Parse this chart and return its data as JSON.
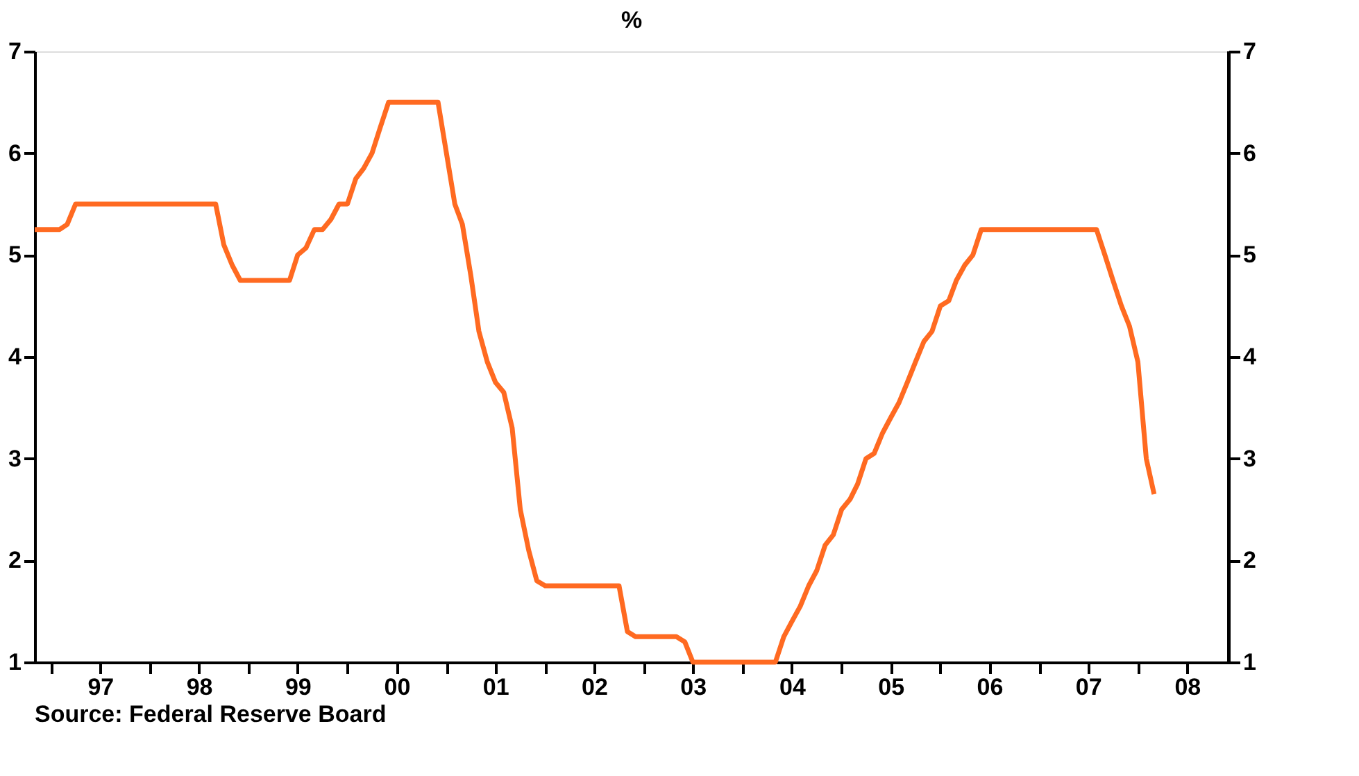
{
  "chart_data": {
    "type": "line",
    "title": "%",
    "x": [
      "1996-11",
      "1997-02",
      "1997-03",
      "1997-04",
      "1998-09",
      "1998-10",
      "1998-11",
      "1998-12",
      "1999-06",
      "1999-07",
      "1999-08",
      "1999-09",
      "1999-10",
      "1999-11",
      "1999-12",
      "2000-01",
      "2000-02",
      "2000-03",
      "2000-04",
      "2000-05",
      "2000-06",
      "2000-12",
      "2001-01",
      "2001-02",
      "2001-03",
      "2001-04",
      "2001-05",
      "2001-06",
      "2001-07",
      "2001-08",
      "2001-09",
      "2001-10",
      "2001-11",
      "2001-12",
      "2002-01",
      "2002-10",
      "2002-11",
      "2002-12",
      "2003-05",
      "2003-06",
      "2003-07",
      "2004-05",
      "2004-06",
      "2004-07",
      "2004-08",
      "2004-09",
      "2004-10",
      "2004-11",
      "2004-12",
      "2005-01",
      "2005-02",
      "2005-03",
      "2005-04",
      "2005-05",
      "2005-06",
      "2005-07",
      "2005-08",
      "2005-09",
      "2005-10",
      "2005-11",
      "2005-12",
      "2006-01",
      "2006-02",
      "2006-03",
      "2006-04",
      "2006-05",
      "2006-06",
      "2007-08",
      "2007-09",
      "2007-10",
      "2007-11",
      "2007-12",
      "2008-01",
      "2008-02",
      "2008-03"
    ],
    "series": [
      {
        "color": "#ff6a21",
        "values": [
          5.25,
          5.25,
          5.3,
          5.5,
          5.5,
          5.1,
          4.9,
          4.75,
          4.75,
          5.0,
          5.07,
          5.25,
          5.25,
          5.35,
          5.5,
          5.5,
          5.75,
          5.85,
          6.0,
          6.25,
          6.5,
          6.5,
          6.0,
          5.5,
          5.3,
          4.8,
          4.25,
          3.95,
          3.75,
          3.65,
          3.3,
          2.5,
          2.1,
          1.8,
          1.75,
          1.75,
          1.3,
          1.25,
          1.25,
          1.2,
          1.0,
          1.0,
          1.25,
          1.4,
          1.55,
          1.75,
          1.9,
          2.15,
          2.25,
          2.5,
          2.6,
          2.75,
          3.0,
          3.05,
          3.25,
          3.4,
          3.55,
          3.75,
          3.95,
          4.15,
          4.25,
          4.5,
          4.55,
          4.75,
          4.9,
          5.0,
          5.25,
          5.25,
          5.0,
          4.75,
          4.5,
          4.3,
          3.95,
          3.0,
          2.65
        ]
      }
    ],
    "xlim": [
      "1996-11",
      "2008-12"
    ],
    "xticks": [
      {
        "value": "1997-01",
        "label": null
      },
      {
        "value": "1997-07",
        "label": "97"
      },
      {
        "value": "1998-01",
        "label": null
      },
      {
        "value": "1998-07",
        "label": "98"
      },
      {
        "value": "1999-01",
        "label": null
      },
      {
        "value": "1999-07",
        "label": "99"
      },
      {
        "value": "2000-01",
        "label": null
      },
      {
        "value": "2000-07",
        "label": "00"
      },
      {
        "value": "2001-01",
        "label": null
      },
      {
        "value": "2001-07",
        "label": "01"
      },
      {
        "value": "2002-01",
        "label": null
      },
      {
        "value": "2002-07",
        "label": "02"
      },
      {
        "value": "2003-01",
        "label": null
      },
      {
        "value": "2003-07",
        "label": "03"
      },
      {
        "value": "2004-01",
        "label": null
      },
      {
        "value": "2004-07",
        "label": "04"
      },
      {
        "value": "2005-01",
        "label": null
      },
      {
        "value": "2005-07",
        "label": "05"
      },
      {
        "value": "2006-01",
        "label": null
      },
      {
        "value": "2006-07",
        "label": "06"
      },
      {
        "value": "2007-01",
        "label": null
      },
      {
        "value": "2007-07",
        "label": "07"
      },
      {
        "value": "2008-01",
        "label": null
      },
      {
        "value": "2008-07",
        "label": "08"
      }
    ],
    "ylim": [
      1,
      7
    ],
    "yticks": [
      1,
      2,
      3,
      4,
      5,
      6,
      7
    ],
    "y2lim": [
      1,
      7
    ],
    "y2ticks": [
      1,
      2,
      3,
      4,
      5,
      6,
      7
    ],
    "grid": false,
    "marker": "none",
    "line_style": "solid",
    "annotations": [
      "Source:  Federal Reserve Board"
    ]
  }
}
